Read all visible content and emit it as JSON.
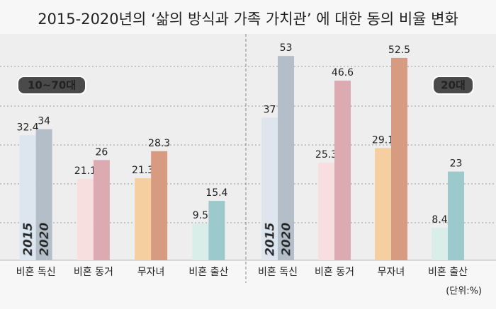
{
  "title": "2015-2020년의 ‘삶의 방식과 가족 가치관’ 에 대한 동의 비율 변화",
  "unit": "(단위:%)",
  "chart_data": [
    {
      "type": "bar",
      "title": "10~70대",
      "categories": [
        "비혼 독신",
        "비혼 동거",
        "무자녀",
        "비혼 출산"
      ],
      "series": [
        {
          "name": "2015",
          "color": [
            "#dde5ee",
            "#f8dfdf",
            "#f5cfa0",
            "#d9ede9"
          ],
          "values": [
            32.4,
            21.1,
            21.3,
            9.5
          ]
        },
        {
          "name": "2020",
          "color": [
            "#b3bec9",
            "#dcabb1",
            "#d69b80",
            "#9cc9cc"
          ],
          "values": [
            34,
            26,
            28.3,
            15.4
          ]
        }
      ],
      "ylim": [
        0,
        60
      ]
    },
    {
      "type": "bar",
      "title": "20대",
      "categories": [
        "비혼 독신",
        "비혼 동거",
        "무자녀",
        "비혼 출산"
      ],
      "series": [
        {
          "name": "2015",
          "color": [
            "#dde5ee",
            "#f8dfdf",
            "#f5cfa0",
            "#d9ede9"
          ],
          "values": [
            37,
            25.3,
            29.1,
            8.4
          ]
        },
        {
          "name": "2020",
          "color": [
            "#b3bec9",
            "#dcabb1",
            "#d69b80",
            "#9cc9cc"
          ],
          "values": [
            53,
            46.6,
            52.5,
            23
          ]
        }
      ],
      "ylim": [
        0,
        60
      ]
    }
  ]
}
